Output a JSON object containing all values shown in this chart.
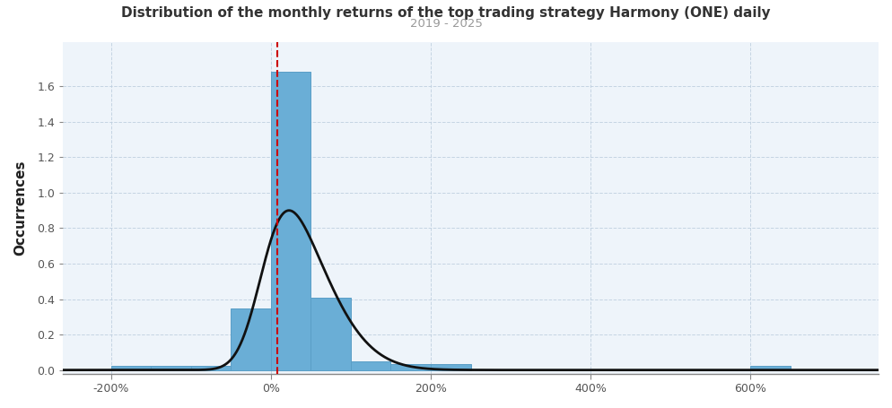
{
  "title": "Distribution of the monthly returns of the top trading strategy Harmony (ONE) daily",
  "subtitle": "2019 - 2025",
  "ylabel": "Occurrences",
  "bar_color": "#6aaed6",
  "bar_edge_color": "#5a9ec6",
  "kde_color": "#111111",
  "vline_color": "#CC0000",
  "vline_x": 0.08,
  "background_color": "#FFFFFF",
  "plot_bg_color": "#EEF4FA",
  "grid_color": "#BBCCDD",
  "title_color": "#333333",
  "subtitle_color": "#999999",
  "bin_centers": [
    -1.75,
    -1.25,
    -0.75,
    -0.25,
    0.25,
    0.75,
    1.25,
    1.75,
    2.25,
    6.25
  ],
  "bin_heights": [
    0.025,
    0.025,
    0.025,
    0.345,
    1.68,
    0.41,
    0.05,
    0.035,
    0.035,
    0.025
  ],
  "bin_width": 0.5,
  "xlim": [
    -2.6,
    7.6
  ],
  "ylim": [
    -0.02,
    1.85
  ],
  "yticks": [
    0.0,
    0.2,
    0.4,
    0.6,
    0.8,
    1.0,
    1.2,
    1.4,
    1.6
  ],
  "xtick_positions": [
    -2.0,
    0.0,
    2.0,
    4.0,
    6.0
  ],
  "xtick_labels": [
    "-200%",
    "0%",
    "200%",
    "400%",
    "600%"
  ],
  "kde_mean": 0.08,
  "kde_std": 0.55,
  "kde_skew_lambda": 3.0,
  "kde_peak": 0.9
}
